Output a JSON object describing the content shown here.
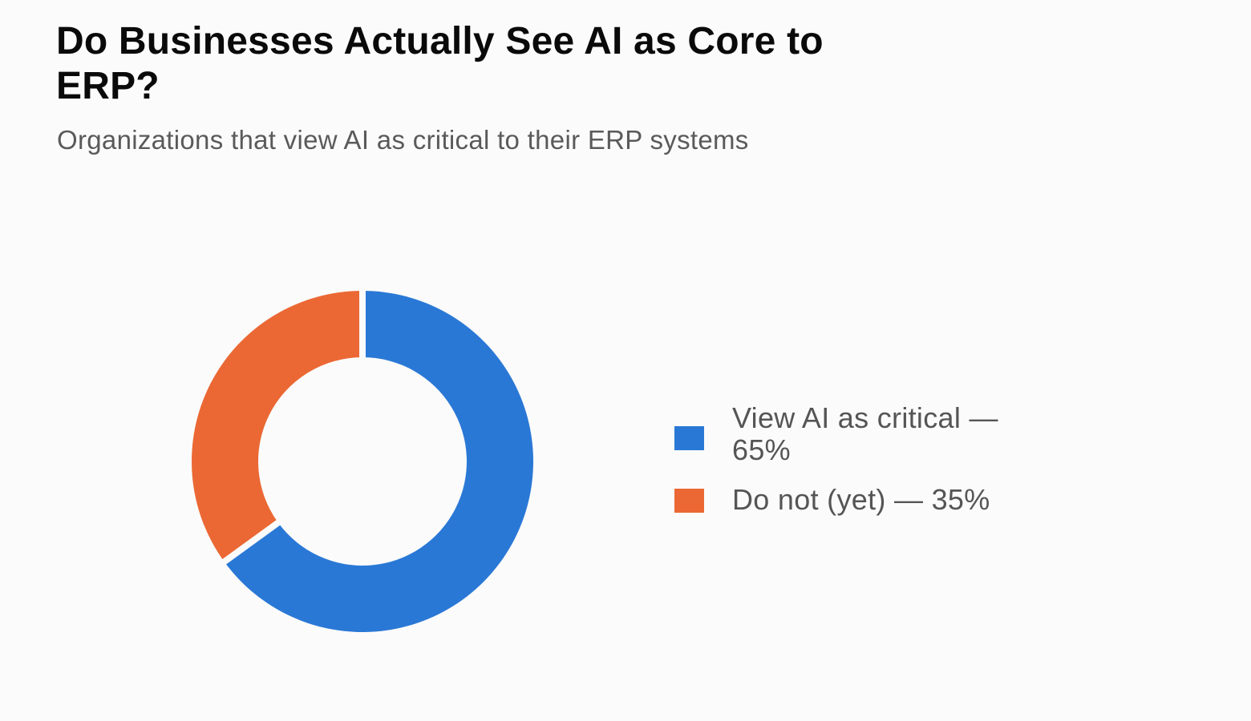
{
  "title": "Do Businesses Actually See AI as Core to ERP?",
  "subtitle": "Organizations that view AI as critical to their ERP systems",
  "chart_data": {
    "type": "pie",
    "variant": "donut",
    "title": "Do Businesses Actually See AI as Core to ERP?",
    "subtitle": "Organizations that view AI as critical to their ERP systems",
    "slices": [
      {
        "label": "View AI as critical — 65%",
        "value": 65,
        "color": "#2a78d6"
      },
      {
        "label": "Do not (yet) — 35%",
        "value": 35,
        "color": "#eb6834"
      }
    ],
    "legend_position": "right",
    "start_angle": "top",
    "direction": "clockwise"
  }
}
